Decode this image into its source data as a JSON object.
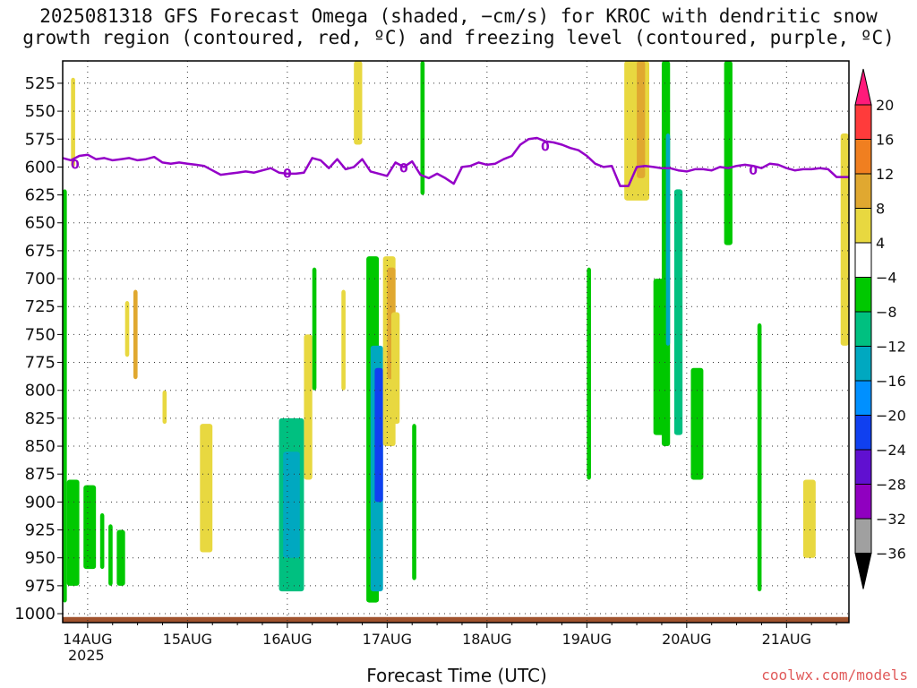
{
  "page": {
    "title_line1": "2025081318 GFS Forecast Omega (shaded, −cm/s) for KROC with dendritic snow",
    "title_line2": "growth region (contoured, red, ºC) and freezing level (contoured, purple, ºC)",
    "credit": "coolwx.com/models",
    "year_label": "2025"
  },
  "chart_data": {
    "type": "heatmap",
    "title": "2025081318 GFS Forecast Omega (shaded, −cm/s) for KROC with dendritic snow growth region (contoured, red, ºC) and freezing level (contoured, purple, ºC)",
    "xlabel": "Forecast Time (UTC)",
    "ylabel": "",
    "x_ticks": [
      "14AUG",
      "15AUG",
      "16AUG",
      "17AUG",
      "18AUG",
      "19AUG",
      "20AUG",
      "21AUG"
    ],
    "x_range_hours": [
      -6,
      183
    ],
    "y_ticks": [
      525,
      550,
      575,
      600,
      625,
      650,
      675,
      700,
      725,
      750,
      775,
      800,
      825,
      850,
      875,
      900,
      925,
      950,
      975,
      1000
    ],
    "y_range_hpa": [
      1008,
      505
    ],
    "grid": true,
    "colorbar": {
      "labels": [
        "20",
        "16",
        "12",
        "8",
        "4",
        "−4",
        "−8",
        "−12",
        "−16",
        "−20",
        "−24",
        "−28",
        "−32",
        "−36"
      ],
      "colors": [
        "#ff1a7a",
        "#ff3b3b",
        "#f07f20",
        "#e0a830",
        "#e8d840",
        "#ffffff",
        "#00c800",
        "#00c080",
        "#00a8c0",
        "#0090ff",
        "#1040f0",
        "#6010d0",
        "#9000c0",
        "#a0a0a0",
        "#000000"
      ]
    },
    "freezing_level": {
      "label": "0",
      "color": "#9400c8",
      "points": [
        [
          -6,
          592
        ],
        [
          -4,
          594
        ],
        [
          -2,
          590
        ],
        [
          0,
          589
        ],
        [
          2,
          593
        ],
        [
          4,
          592
        ],
        [
          6,
          594
        ],
        [
          8,
          593
        ],
        [
          10,
          592
        ],
        [
          12,
          594
        ],
        [
          14,
          593
        ],
        [
          16,
          591
        ],
        [
          18,
          596
        ],
        [
          20,
          597
        ],
        [
          22,
          596
        ],
        [
          24,
          597
        ],
        [
          26,
          598
        ],
        [
          28,
          599
        ],
        [
          30,
          603
        ],
        [
          32,
          607
        ],
        [
          34,
          606
        ],
        [
          36,
          605
        ],
        [
          38,
          604
        ],
        [
          40,
          605
        ],
        [
          42,
          603
        ],
        [
          44,
          601
        ],
        [
          46,
          605
        ],
        [
          48,
          606
        ],
        [
          50,
          606
        ],
        [
          52,
          605
        ],
        [
          54,
          592
        ],
        [
          56,
          594
        ],
        [
          58,
          601
        ],
        [
          60,
          593
        ],
        [
          62,
          602
        ],
        [
          64,
          600
        ],
        [
          66,
          593
        ],
        [
          68,
          604
        ],
        [
          70,
          606
        ],
        [
          72,
          608
        ],
        [
          74,
          596
        ],
        [
          76,
          600
        ],
        [
          78,
          595
        ],
        [
          80,
          607
        ],
        [
          82,
          610
        ],
        [
          84,
          606
        ],
        [
          86,
          610
        ],
        [
          88,
          615
        ],
        [
          90,
          600
        ],
        [
          92,
          599
        ],
        [
          94,
          596
        ],
        [
          96,
          598
        ],
        [
          98,
          597
        ],
        [
          100,
          593
        ],
        [
          102,
          590
        ],
        [
          104,
          580
        ],
        [
          106,
          575
        ],
        [
          108,
          574
        ],
        [
          110,
          577
        ],
        [
          112,
          578
        ],
        [
          114,
          580
        ],
        [
          116,
          583
        ],
        [
          118,
          585
        ],
        [
          120,
          590
        ],
        [
          122,
          597
        ],
        [
          124,
          600
        ],
        [
          126,
          599
        ],
        [
          128,
          617
        ],
        [
          130,
          617
        ],
        [
          132,
          600
        ],
        [
          134,
          599
        ],
        [
          136,
          600
        ],
        [
          138,
          601
        ],
        [
          140,
          601
        ],
        [
          142,
          603
        ],
        [
          144,
          604
        ],
        [
          146,
          602
        ],
        [
          148,
          602
        ],
        [
          150,
          603
        ],
        [
          152,
          600
        ],
        [
          154,
          601
        ],
        [
          156,
          599
        ],
        [
          158,
          598
        ],
        [
          160,
          599
        ],
        [
          162,
          601
        ],
        [
          164,
          597
        ],
        [
          166,
          598
        ],
        [
          168,
          601
        ],
        [
          170,
          603
        ],
        [
          172,
          602
        ],
        [
          174,
          602
        ],
        [
          176,
          601
        ],
        [
          178,
          602
        ],
        [
          180,
          609
        ],
        [
          183,
          609
        ]
      ]
    },
    "omega_regions": [
      {
        "x": [
          -6,
          -5
        ],
        "p": [
          620,
          990
        ],
        "value": -6
      },
      {
        "x": [
          -5,
          -2
        ],
        "p": [
          880,
          975
        ],
        "value": -6
      },
      {
        "x": [
          -1,
          2
        ],
        "p": [
          885,
          960
        ],
        "value": -6
      },
      {
        "x": [
          3,
          4
        ],
        "p": [
          910,
          960
        ],
        "value": -6
      },
      {
        "x": [
          5,
          6
        ],
        "p": [
          920,
          975
        ],
        "value": -6
      },
      {
        "x": [
          7,
          9
        ],
        "p": [
          925,
          975
        ],
        "value": -6
      },
      {
        "x": [
          27,
          30
        ],
        "p": [
          830,
          945
        ],
        "value": 4
      },
      {
        "x": [
          -4,
          -3
        ],
        "p": [
          520,
          600
        ],
        "value": 5
      },
      {
        "x": [
          9,
          10
        ],
        "p": [
          720,
          770
        ],
        "value": 5
      },
      {
        "x": [
          11,
          12
        ],
        "p": [
          710,
          790
        ],
        "value": 10
      },
      {
        "x": [
          18,
          19
        ],
        "p": [
          800,
          830
        ],
        "value": 5
      },
      {
        "x": [
          46,
          52
        ],
        "p": [
          825,
          980
        ],
        "value": -8
      },
      {
        "x": [
          47,
          51
        ],
        "p": [
          855,
          950
        ],
        "value": -14
      },
      {
        "x": [
          52,
          54
        ],
        "p": [
          750,
          880
        ],
        "value": 6
      },
      {
        "x": [
          54,
          55
        ],
        "p": [
          690,
          800
        ],
        "value": -6
      },
      {
        "x": [
          61,
          62
        ],
        "p": [
          710,
          800
        ],
        "value": 6
      },
      {
        "x": [
          67,
          70
        ],
        "p": [
          680,
          990
        ],
        "value": -6
      },
      {
        "x": [
          68,
          71
        ],
        "p": [
          760,
          980
        ],
        "value": -14
      },
      {
        "x": [
          69,
          71
        ],
        "p": [
          780,
          900
        ],
        "value": -22
      },
      {
        "x": [
          71,
          74
        ],
        "p": [
          680,
          850
        ],
        "value": 6
      },
      {
        "x": [
          72,
          74
        ],
        "p": [
          690,
          790
        ],
        "value": 10
      },
      {
        "x": [
          73,
          75
        ],
        "p": [
          730,
          830
        ],
        "value": 6
      },
      {
        "x": [
          78,
          79
        ],
        "p": [
          830,
          970
        ],
        "value": -6
      },
      {
        "x": [
          64,
          66
        ],
        "p": [
          505,
          580
        ],
        "value": 5
      },
      {
        "x": [
          80,
          81
        ],
        "p": [
          505,
          625
        ],
        "value": -6
      },
      {
        "x": [
          120,
          121
        ],
        "p": [
          690,
          880
        ],
        "value": -6
      },
      {
        "x": [
          129,
          135
        ],
        "p": [
          505,
          630
        ],
        "value": 7
      },
      {
        "x": [
          132,
          134
        ],
        "p": [
          505,
          610
        ],
        "value": 10
      },
      {
        "x": [
          138,
          140
        ],
        "p": [
          505,
          850
        ],
        "value": -7
      },
      {
        "x": [
          139,
          140
        ],
        "p": [
          570,
          760
        ],
        "value": -14
      },
      {
        "x": [
          136,
          139
        ],
        "p": [
          700,
          840
        ],
        "value": -7
      },
      {
        "x": [
          141,
          143
        ],
        "p": [
          620,
          840
        ],
        "value": -8
      },
      {
        "x": [
          145,
          148
        ],
        "p": [
          780,
          880
        ],
        "value": -7
      },
      {
        "x": [
          153,
          155
        ],
        "p": [
          505,
          670
        ],
        "value": -7
      },
      {
        "x": [
          161,
          162
        ],
        "p": [
          740,
          980
        ],
        "value": -7
      },
      {
        "x": [
          172,
          175
        ],
        "p": [
          880,
          950
        ],
        "value": 5
      },
      {
        "x": [
          181,
          183
        ],
        "p": [
          570,
          760
        ],
        "value": 5
      }
    ]
  }
}
